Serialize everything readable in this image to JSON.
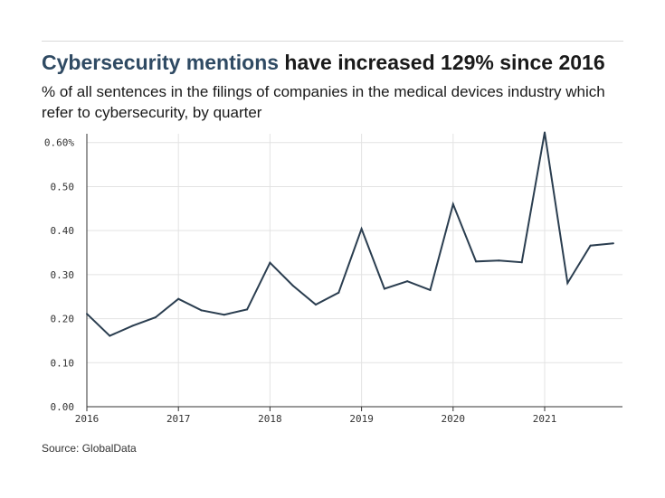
{
  "header": {
    "title_accent": "Cybersecurity mentions",
    "title_rest": " have increased 129% since 2016",
    "subtitle": "% of all sentences in the filings of companies in the medical devices industry which refer to cybersecurity, by quarter"
  },
  "footer": {
    "source": "Source: GlobalData"
  },
  "colors": {
    "line": "#2b3e50",
    "accent_title": "#2f4a63",
    "grid": "#e3e3e3"
  },
  "chart_data": {
    "type": "line",
    "title": "Cybersecurity mentions have increased 129% since 2016",
    "subtitle": "% of all sentences in the filings of companies in the medical devices industry which refer to cybersecurity, by quarter",
    "xlabel": "",
    "ylabel": "",
    "x": [
      "2016-Q1",
      "2016-Q2",
      "2016-Q3",
      "2016-Q4",
      "2017-Q1",
      "2017-Q2",
      "2017-Q3",
      "2017-Q4",
      "2018-Q1",
      "2018-Q2",
      "2018-Q3",
      "2018-Q4",
      "2019-Q1",
      "2019-Q2",
      "2019-Q3",
      "2019-Q4",
      "2020-Q1",
      "2020-Q2",
      "2020-Q3",
      "2020-Q4",
      "2021-Q1",
      "2021-Q2",
      "2021-Q3",
      "2021-Q4"
    ],
    "values": [
      0.211,
      0.161,
      0.184,
      0.203,
      0.245,
      0.219,
      0.209,
      0.221,
      0.327,
      0.275,
      0.232,
      0.259,
      0.404,
      0.268,
      0.285,
      0.265,
      0.46,
      0.33,
      0.332,
      0.328,
      0.623,
      0.281,
      0.366,
      0.371
    ],
    "ylim": [
      0,
      0.62
    ],
    "yticks": [
      0,
      0.1,
      0.2,
      0.3,
      0.4,
      0.5,
      0.6
    ],
    "ytick_labels": [
      "0.00",
      "0.10",
      "0.20",
      "0.30",
      "0.40",
      "0.50",
      "0.60%"
    ],
    "xtick_labels": [
      "2016",
      "2017",
      "2018",
      "2019",
      "2020",
      "2021"
    ],
    "grid": true,
    "legend": "none"
  }
}
